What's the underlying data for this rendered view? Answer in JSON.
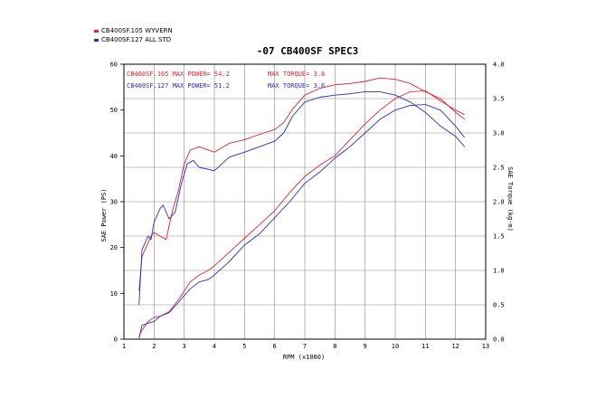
{
  "legend": [
    {
      "label": "CB400SF.105  WYVERN",
      "color": "#e8212f"
    },
    {
      "label": "CB400SF.127  ALL STD",
      "color": "#2b2bd6"
    }
  ],
  "chart_data": {
    "type": "line",
    "title": "-07 CB400SF SPEC3",
    "xlabel": "RPM (x1000)",
    "ylabel_left": "SAE Power (PS)",
    "ylabel_right": "SAE Torque (kg-m)",
    "xlim": [
      1,
      13
    ],
    "ylim_left": [
      0,
      60
    ],
    "ylim_right": [
      0,
      4.0
    ],
    "x_ticks": [
      "1",
      "2",
      "3",
      "4",
      "5",
      "6",
      "7",
      "8",
      "9",
      "10",
      "11",
      "12",
      "13"
    ],
    "y_ticks_left": [
      "0",
      "10",
      "20",
      "30",
      "40",
      "50",
      "60"
    ],
    "y_ticks_right": [
      "0.0",
      "0.5",
      "1.0",
      "1.5",
      "2.0",
      "2.5",
      "3.0",
      "3.5",
      "4.0"
    ],
    "grid": true,
    "annotations": [
      {
        "text": "CB400SF.105  MAX POWER= 54.2",
        "color": "#e8212f"
      },
      {
        "text": "CB400SF.127  MAX POWER= 51.2",
        "color": "#2b2bd6"
      },
      {
        "text": "MAX TORQUE= 3.8",
        "color": "#e8212f"
      },
      {
        "text": "MAX TORQUE= 3.6",
        "color": "#2b2bd6"
      }
    ],
    "series": [
      {
        "name": "CB400SF.105 WYVERN power",
        "color": "#e8212f",
        "axis": "left",
        "x": [
          1.5,
          1.6,
          1.8,
          2.0,
          2.2,
          2.5,
          2.8,
          3.2,
          3.5,
          3.8,
          4.0,
          4.5,
          5.0,
          5.5,
          6.0,
          6.5,
          7.0,
          7.5,
          8.0,
          8.5,
          9.0,
          9.5,
          10.0,
          10.5,
          11.0,
          11.5,
          12.0,
          12.3
        ],
        "y": [
          0.5,
          2.0,
          3.8,
          4.8,
          5.0,
          6.0,
          8.5,
          12.5,
          14.0,
          15.0,
          16.0,
          19.0,
          22.0,
          25.0,
          28.0,
          32.0,
          35.5,
          38.0,
          40.0,
          43.5,
          47.0,
          50.0,
          52.5,
          54.0,
          54.2,
          52.0,
          50.0,
          49.0
        ]
      },
      {
        "name": "CB400SF.127 ALL STD power",
        "color": "#2b2bd6",
        "axis": "left",
        "x": [
          1.5,
          1.6,
          1.8,
          2.0,
          2.2,
          2.5,
          2.8,
          3.2,
          3.5,
          3.8,
          4.0,
          4.5,
          5.0,
          5.5,
          6.0,
          6.5,
          7.0,
          7.5,
          8.0,
          8.5,
          9.0,
          9.5,
          10.0,
          10.5,
          11.0,
          11.5,
          12.0,
          12.3
        ],
        "y": [
          0.2,
          3.0,
          3.5,
          3.8,
          5.0,
          5.8,
          8.0,
          11.0,
          12.5,
          13.0,
          14.0,
          17.0,
          20.5,
          23.0,
          26.5,
          30.0,
          34.0,
          36.5,
          39.5,
          42.0,
          45.0,
          48.0,
          50.0,
          51.0,
          51.2,
          50.0,
          46.5,
          44.0
        ]
      },
      {
        "name": "CB400SF.105 WYVERN torque",
        "color": "#e8212f",
        "axis": "right",
        "x": [
          1.5,
          1.6,
          1.8,
          1.9,
          2.0,
          2.2,
          2.4,
          2.6,
          2.8,
          3.0,
          3.2,
          3.5,
          4.0,
          4.5,
          5.0,
          5.5,
          6.0,
          6.3,
          6.6,
          7.0,
          7.5,
          8.0,
          8.5,
          9.0,
          9.5,
          10.0,
          10.5,
          11.0,
          11.5,
          12.0,
          12.3
        ],
        "y": [
          0.7,
          1.2,
          1.4,
          1.5,
          1.55,
          1.5,
          1.45,
          1.85,
          2.15,
          2.55,
          2.75,
          2.8,
          2.72,
          2.85,
          2.9,
          2.98,
          3.05,
          3.15,
          3.35,
          3.55,
          3.65,
          3.7,
          3.72,
          3.75,
          3.8,
          3.78,
          3.72,
          3.6,
          3.5,
          3.3,
          3.2
        ]
      },
      {
        "name": "CB400SF.127 ALL STD torque",
        "color": "#2b2bd6",
        "axis": "right",
        "x": [
          1.5,
          1.6,
          1.8,
          1.9,
          2.0,
          2.2,
          2.3,
          2.5,
          2.7,
          2.9,
          3.1,
          3.3,
          3.5,
          4.0,
          4.5,
          5.0,
          5.5,
          6.0,
          6.3,
          6.6,
          7.0,
          7.5,
          8.0,
          8.5,
          9.0,
          9.5,
          10.0,
          10.5,
          11.0,
          11.5,
          12.0,
          12.3
        ],
        "y": [
          0.5,
          1.3,
          1.5,
          1.45,
          1.7,
          1.9,
          1.95,
          1.75,
          1.85,
          2.25,
          2.55,
          2.6,
          2.5,
          2.45,
          2.65,
          2.72,
          2.8,
          2.88,
          3.0,
          3.25,
          3.45,
          3.52,
          3.55,
          3.57,
          3.6,
          3.6,
          3.55,
          3.45,
          3.3,
          3.1,
          2.95,
          2.8
        ]
      }
    ]
  }
}
